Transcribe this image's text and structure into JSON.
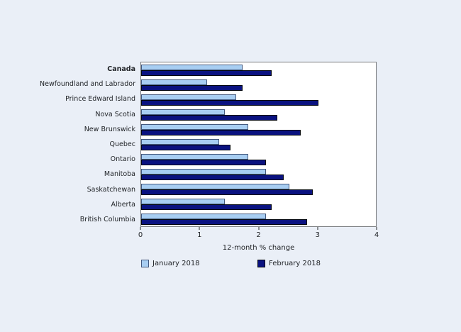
{
  "window": {
    "background": "#EAEFF7",
    "text_color": "#212428"
  },
  "chart_data": {
    "type": "bar",
    "orientation": "horizontal",
    "title": "",
    "xlabel": "12-month % change",
    "ylabel": "",
    "xlim": [
      0,
      4
    ],
    "xticks": [
      "0",
      "1",
      "2",
      "3",
      "4"
    ],
    "grid": false,
    "legend_position": "bottom",
    "plot_background": "#FFFFFF",
    "plot_border_color": "#77797C",
    "tick_color": "#26282B",
    "emphasized_category": "Canada",
    "categories": [
      "Canada",
      "Newfoundland and Labrador",
      "Prince Edward Island",
      "Nova Scotia",
      "New Brunswick",
      "Quebec",
      "Ontario",
      "Manitoba",
      "Saskatchewan",
      "Alberta",
      "British Columbia"
    ],
    "series": [
      {
        "name": "January 2018",
        "fill": "#A8CEF2",
        "border": "#44597E",
        "values": [
          1.7,
          1.1,
          1.6,
          1.4,
          1.8,
          1.3,
          1.8,
          2.1,
          2.5,
          1.4,
          2.1
        ]
      },
      {
        "name": "February 2018",
        "fill": "#0A1280",
        "border": "#02060F",
        "values": [
          2.2,
          1.7,
          3.0,
          2.3,
          2.7,
          1.5,
          2.1,
          2.4,
          2.9,
          2.2,
          2.8
        ]
      }
    ]
  }
}
